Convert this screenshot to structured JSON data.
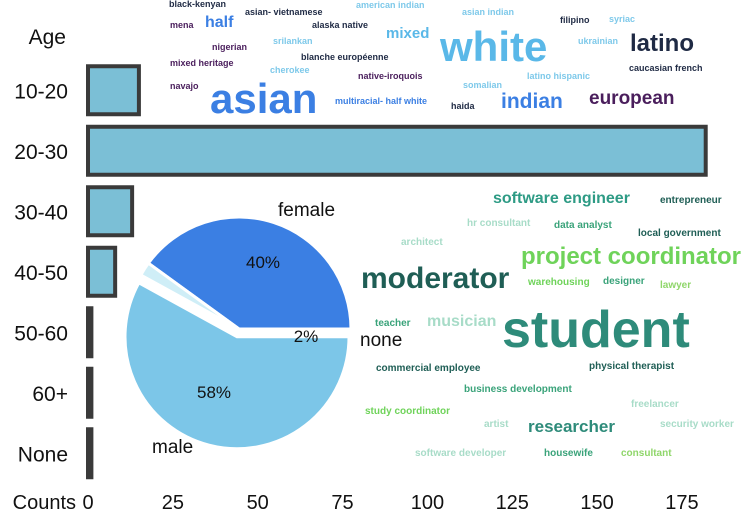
{
  "chart_data": [
    {
      "type": "bar",
      "orientation": "horizontal",
      "category_axis_label": "Age",
      "value_axis_label": "Counts",
      "categories": [
        "10-20",
        "20-30",
        "30-40",
        "40-50",
        "50-60",
        "60+",
        "None"
      ],
      "values": [
        15,
        182,
        13,
        8,
        1,
        1,
        1
      ],
      "xlim": [
        0,
        190
      ],
      "xticks": [
        0,
        25,
        50,
        75,
        100,
        125,
        150,
        175
      ],
      "bar_color": "#7bbfd6",
      "edge_color": "#3a3a3a",
      "grid": false
    },
    {
      "type": "pie",
      "labels": [
        "female",
        "none",
        "male"
      ],
      "values": [
        40,
        2,
        58
      ],
      "value_labels": [
        "40%",
        "2%",
        "58%"
      ],
      "colors": [
        "#3b7fe3",
        "#cfeef7",
        "#7cc6e8"
      ]
    },
    {
      "type": "wordcloud",
      "topic": "ethnicity",
      "words": [
        {
          "text": "black-kenyan",
          "color": "#1f2a44"
        },
        {
          "text": "asian- vietnamese",
          "color": "#1f2a44"
        },
        {
          "text": "american indian",
          "color": "#7ec9ea"
        },
        {
          "text": "asian indian",
          "color": "#7ec9ea"
        },
        {
          "text": "filipino",
          "color": "#1f2a44"
        },
        {
          "text": "syriac",
          "color": "#7ec9ea"
        },
        {
          "text": "mena",
          "color": "#4a1e5c"
        },
        {
          "text": "half",
          "color": "#3b7fe3"
        },
        {
          "text": "alaska native",
          "color": "#1f2a44"
        },
        {
          "text": "mixed",
          "color": "#5ab8e8"
        },
        {
          "text": "white",
          "color": "#5ab8e8"
        },
        {
          "text": "ukrainian",
          "color": "#7ec9ea"
        },
        {
          "text": "latino",
          "color": "#1f2a44"
        },
        {
          "text": "srilankan",
          "color": "#7ec9ea"
        },
        {
          "text": "nigerian",
          "color": "#4a1e5c"
        },
        {
          "text": "blanche européenne",
          "color": "#1f2a44"
        },
        {
          "text": "mixed heritage",
          "color": "#4a1e5c"
        },
        {
          "text": "cherokee",
          "color": "#7ec9ea"
        },
        {
          "text": "caucasian french",
          "color": "#1f2a44"
        },
        {
          "text": "native-iroquois",
          "color": "#4a1e5c"
        },
        {
          "text": "somalian",
          "color": "#7ec9ea"
        },
        {
          "text": "latino hispanic",
          "color": "#7ec9ea"
        },
        {
          "text": "navajo",
          "color": "#4a1e5c"
        },
        {
          "text": "asian",
          "color": "#3b7fe3"
        },
        {
          "text": "european",
          "color": "#4a1e5c"
        },
        {
          "text": "multiracial- half white",
          "color": "#3b7fe3"
        },
        {
          "text": "indian",
          "color": "#3b7fe3"
        },
        {
          "text": "haida",
          "color": "#1f2a44"
        }
      ]
    },
    {
      "type": "wordcloud",
      "topic": "occupation",
      "words": [
        {
          "text": "software engineer",
          "color": "#2e9b85"
        },
        {
          "text": "entrepreneur",
          "color": "#1f5e55"
        },
        {
          "text": "hr consultant",
          "color": "#a8dcc8"
        },
        {
          "text": "data analyst",
          "color": "#3aa37a"
        },
        {
          "text": "local government",
          "color": "#1f5e55"
        },
        {
          "text": "architect",
          "color": "#a8dcc8"
        },
        {
          "text": "project coordinator",
          "color": "#6fd35a"
        },
        {
          "text": "moderator",
          "color": "#1f5e55"
        },
        {
          "text": "warehousing",
          "color": "#6fd35a"
        },
        {
          "text": "designer",
          "color": "#3aa37a"
        },
        {
          "text": "lawyer",
          "color": "#8fd66a"
        },
        {
          "text": "teacher",
          "color": "#3aa37a"
        },
        {
          "text": "musician",
          "color": "#a8dcc8"
        },
        {
          "text": "student",
          "color": "#2e8b7a"
        },
        {
          "text": "commercial employee",
          "color": "#1f5e55"
        },
        {
          "text": "physical therapist",
          "color": "#1f5e55"
        },
        {
          "text": "business development",
          "color": "#3aa37a"
        },
        {
          "text": "study coordinator",
          "color": "#6fd35a"
        },
        {
          "text": "freelancer",
          "color": "#a8dcc8"
        },
        {
          "text": "artist",
          "color": "#a8dcc8"
        },
        {
          "text": "researcher",
          "color": "#2e8b7a"
        },
        {
          "text": "security worker",
          "color": "#a8dcc8"
        },
        {
          "text": "software developer",
          "color": "#a8dcc8"
        },
        {
          "text": "housewife",
          "color": "#3aa37a"
        },
        {
          "text": "consultant",
          "color": "#8fd66a"
        }
      ]
    }
  ]
}
